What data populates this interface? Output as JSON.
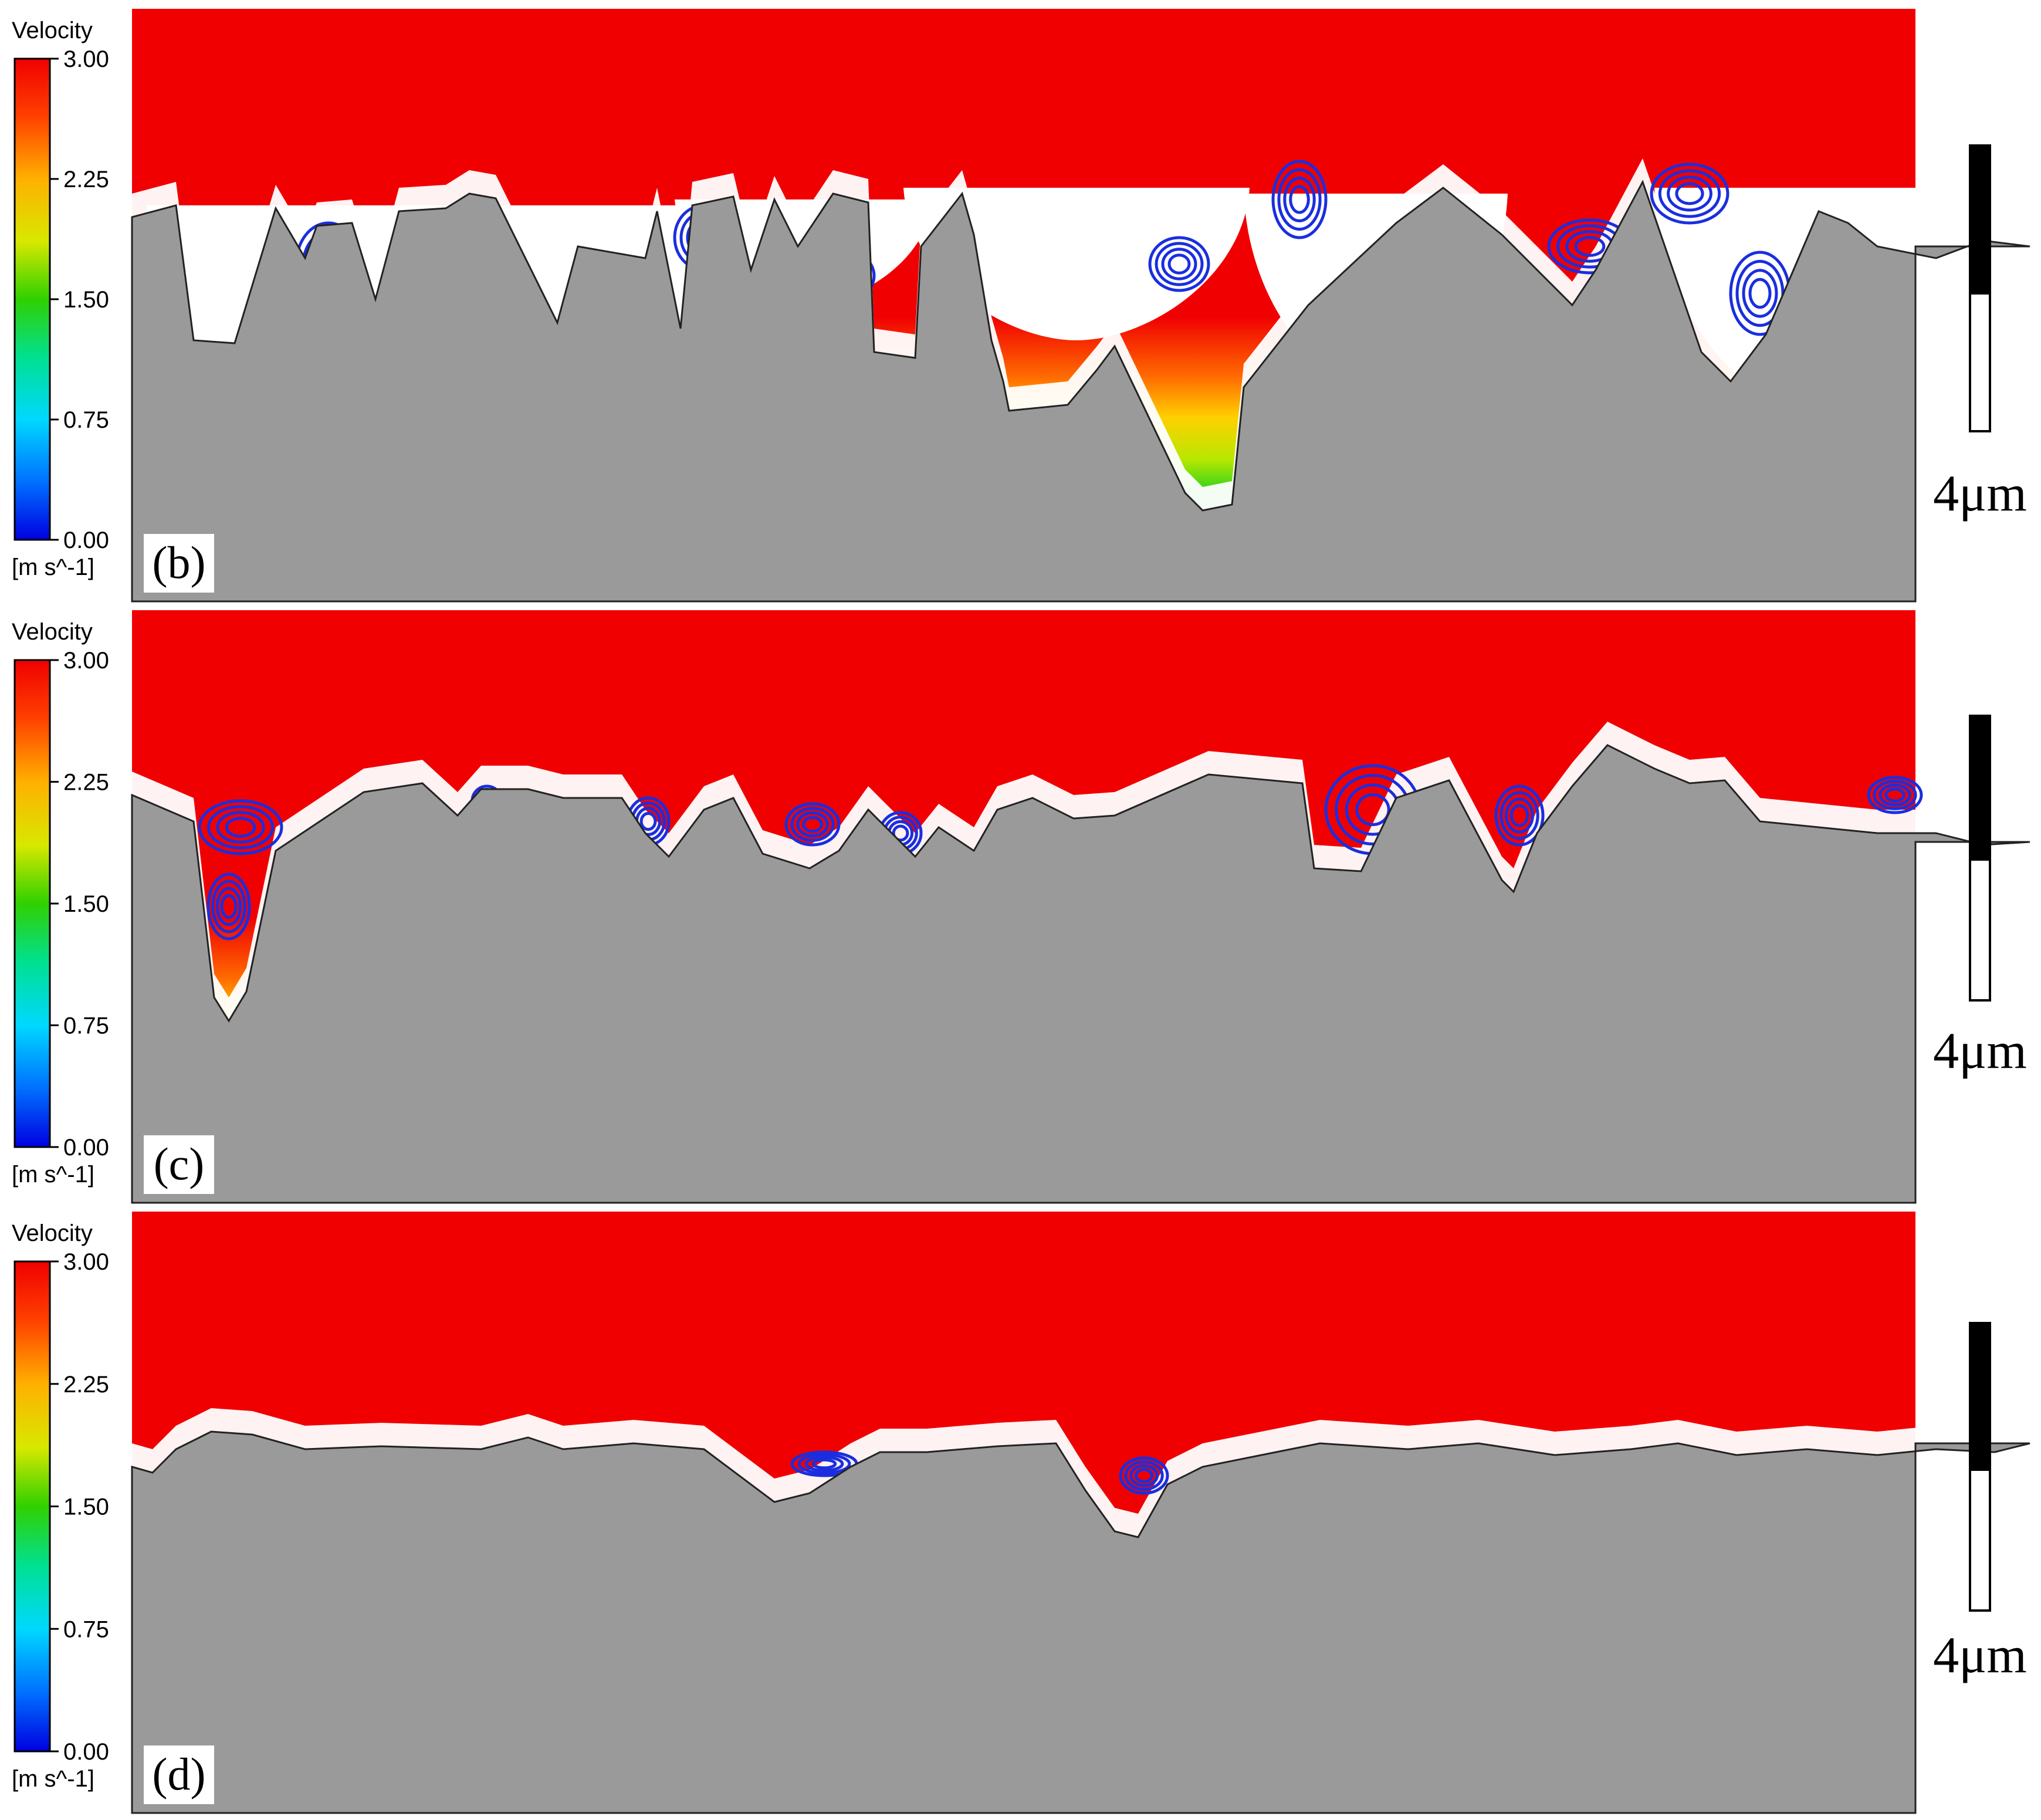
{
  "figure": {
    "panels": [
      {
        "label": "(b)",
        "scale_bar_label": "4μm",
        "legend": {
          "title": "Velocity",
          "unit": "[m s^-1]",
          "ticks": [
            "3.00",
            "2.25",
            "1.50",
            "0.75",
            "0.00"
          ]
        }
      },
      {
        "label": "(c)",
        "scale_bar_label": "4μm",
        "legend": {
          "title": "Velocity",
          "unit": "[m s^-1]",
          "ticks": [
            "3.00",
            "2.25",
            "1.50",
            "0.75",
            "0.00"
          ]
        }
      },
      {
        "label": "(d)",
        "scale_bar_label": "4μm",
        "legend": {
          "title": "Velocity",
          "unit": "[m s^-1]",
          "ticks": [
            "3.00",
            "2.25",
            "1.50",
            "0.75",
            "0.00"
          ]
        }
      }
    ]
  },
  "colors": {
    "solid": "#9a9a9a",
    "cavity": "#ffffff",
    "streamline": "#1a2ee0",
    "colormap": [
      "#0000e0",
      "#0070ff",
      "#00d8ff",
      "#00e090",
      "#30d000",
      "#d8e800",
      "#ffb000",
      "#ff4000",
      "#f00000"
    ]
  },
  "chart_data": [
    {
      "type": "heatmap",
      "title": "",
      "panel": "(b)",
      "colorbar": {
        "title": "Velocity",
        "unit": "[m s^-1]",
        "range": [
          0.0,
          3.0
        ],
        "ticks": [
          3.0,
          2.25,
          1.5,
          0.75,
          0.0
        ]
      },
      "scale_bar": "4μm"
    },
    {
      "type": "heatmap",
      "title": "",
      "panel": "(c)",
      "colorbar": {
        "title": "Velocity",
        "unit": "[m s^-1]",
        "range": [
          0.0,
          3.0
        ],
        "ticks": [
          3.0,
          2.25,
          1.5,
          0.75,
          0.0
        ]
      },
      "scale_bar": "4μm"
    },
    {
      "type": "heatmap",
      "title": "",
      "panel": "(d)",
      "colorbar": {
        "title": "Velocity",
        "unit": "[m s^-1]",
        "range": [
          0.0,
          3.0
        ],
        "ticks": [
          3.0,
          2.25,
          1.5,
          0.75,
          0.0
        ]
      },
      "scale_bar": "4μm"
    }
  ]
}
